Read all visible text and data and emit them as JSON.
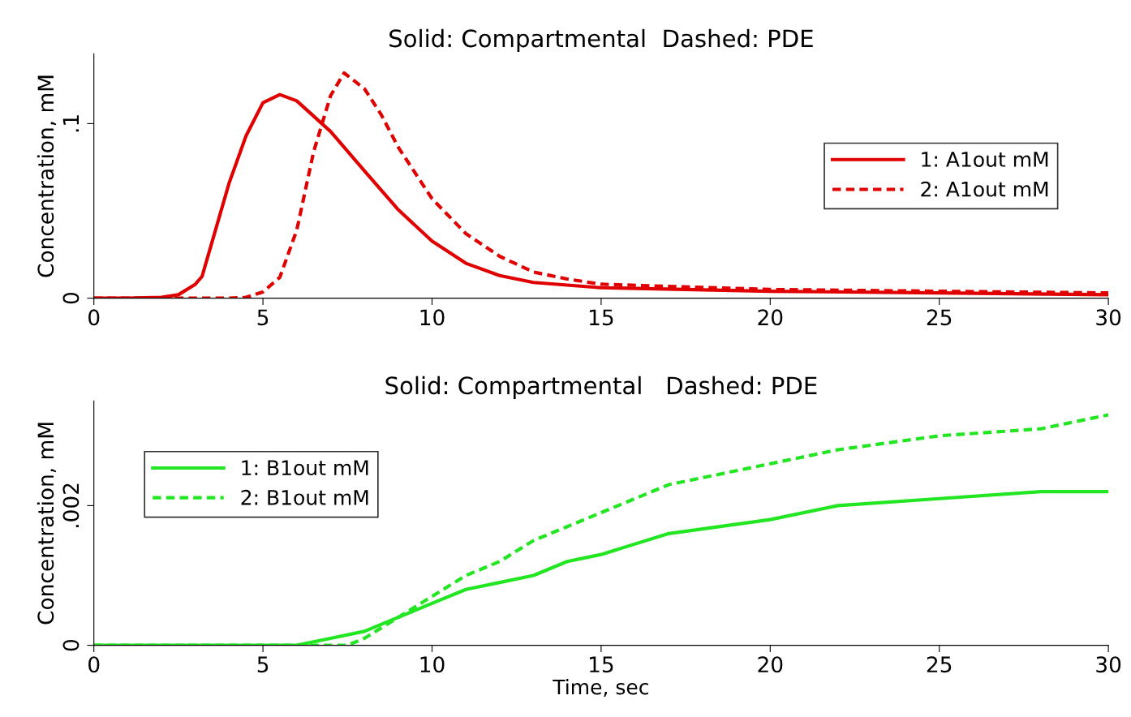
{
  "chart_data": [
    {
      "type": "line",
      "title": "Solid: Compartmental  Dashed: PDE",
      "ylabel": "Concentration, mM",
      "xlim": [
        0,
        30
      ],
      "xticks": [
        0,
        5,
        10,
        15,
        20,
        25,
        30
      ],
      "ylim": [
        0,
        0.14
      ],
      "yticks": [
        0,
        {
          "value": 0.1,
          "label": ".1"
        }
      ],
      "grid": false,
      "legend": "right",
      "series": [
        {
          "name": "1: A1out mM",
          "color": "#e00000",
          "line_style": "solid",
          "x": [
            0,
            1,
            2,
            2.5,
            3,
            3.2,
            4,
            4.5,
            5,
            5.5,
            6,
            7,
            8,
            9,
            10,
            11,
            12,
            13,
            15,
            20,
            25,
            30
          ],
          "values": [
            0,
            0,
            0.0005,
            0.002,
            0.008,
            0.0125,
            0.066,
            0.093,
            0.112,
            0.1166,
            0.113,
            0.0955,
            0.073,
            0.0507,
            0.0327,
            0.02,
            0.013,
            0.009,
            0.006,
            0.004,
            0.003,
            0.002
          ]
        },
        {
          "name": "2: A1out mM",
          "color": "#e00000",
          "line_style": "dashed",
          "x": [
            0,
            2,
            4,
            4.5,
            5,
            5.5,
            6,
            6.5,
            7,
            7.4,
            8,
            8.5,
            9,
            10,
            11,
            12,
            13,
            14,
            15,
            20,
            25,
            30
          ],
          "values": [
            0,
            0,
            0,
            0.0005,
            0.0036,
            0.012,
            0.039,
            0.084,
            0.116,
            0.129,
            0.12,
            0.105,
            0.0865,
            0.057,
            0.037,
            0.024,
            0.015,
            0.011,
            0.008,
            0.005,
            0.004,
            0.003
          ]
        }
      ]
    },
    {
      "type": "line",
      "title": "Solid: Compartmental   Dashed: PDE",
      "xlabel": "Time, sec",
      "ylabel": "Concentration, mM",
      "xlim": [
        0,
        30
      ],
      "xticks": [
        0,
        5,
        10,
        15,
        20,
        25,
        30
      ],
      "ylim": [
        0,
        0.0035
      ],
      "yticks": [
        0,
        {
          "value": 0.002,
          "label": ".002"
        }
      ],
      "grid": false,
      "legend": "top left",
      "series": [
        {
          "name": "1: B1out mM",
          "color": "#22e622",
          "line_style": "solid",
          "x": [
            0,
            4,
            5,
            6,
            7,
            8,
            9,
            10,
            11,
            12,
            13,
            14,
            15,
            17,
            20,
            22,
            25,
            28,
            30
          ],
          "values": [
            0,
            0,
            0,
            0,
            0.0001,
            0.0002,
            0.0004,
            0.0006,
            0.0008,
            0.0009,
            0.001,
            0.0012,
            0.0013,
            0.0016,
            0.0018,
            0.002,
            0.0021,
            0.0022,
            0.0022
          ]
        },
        {
          "name": "2: B1out mM",
          "color": "#22e622",
          "line_style": "dashed",
          "x": [
            0,
            7,
            7.5,
            8,
            9,
            10,
            11,
            12,
            13,
            14,
            15,
            17,
            20,
            22,
            25,
            28,
            30
          ],
          "values": [
            0,
            0,
            0,
            0.0001,
            0.0004,
            0.0007,
            0.001,
            0.0012,
            0.0015,
            0.0017,
            0.0019,
            0.0023,
            0.0026,
            0.0028,
            0.003,
            0.0031,
            0.0033
          ]
        }
      ]
    }
  ]
}
